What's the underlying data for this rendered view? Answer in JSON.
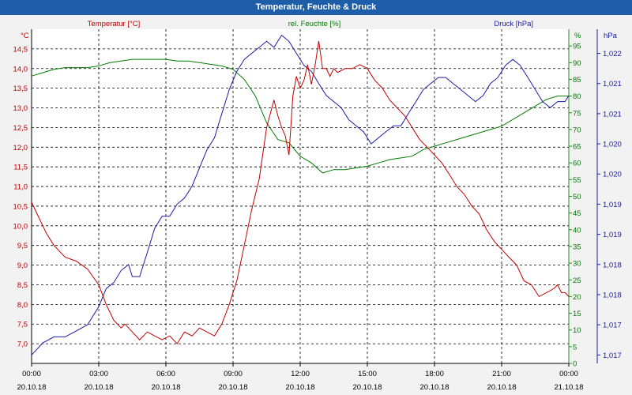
{
  "window_title": "Temperatur, Feuchte & Druck",
  "chart_data": {
    "type": "line",
    "title": "Temperatur, Feuchte & Druck",
    "x_tick_times": [
      "00:00",
      "03:00",
      "06:00",
      "09:00",
      "12:00",
      "15:00",
      "18:00",
      "21:00",
      "00:00"
    ],
    "x_tick_dates": [
      "20.10.18",
      "20.10.18",
      "20.10.18",
      "20.10.18",
      "20.10.18",
      "20.10.18",
      "20.10.18",
      "20.10.18",
      "21.10.18"
    ],
    "xlim_hours": [
      0,
      24
    ],
    "axes": {
      "temperature": {
        "label": "Temperatur [°C]",
        "unit": "°C",
        "color": "#c00000",
        "ylim": [
          6.5,
          15.0
        ],
        "ticks": [
          "14,5",
          "14,0",
          "13,5",
          "13,0",
          "12,5",
          "12,0",
          "11,5",
          "11,0",
          "10,5",
          "10,0",
          "9,5",
          "9,0",
          "8,5",
          "8,0",
          "7,5",
          "7,0"
        ],
        "tick_values": [
          14.5,
          14.0,
          13.5,
          13.0,
          12.5,
          12.0,
          11.5,
          11.0,
          10.5,
          10.0,
          9.5,
          9.0,
          8.5,
          8.0,
          7.5,
          7.0
        ]
      },
      "humidity": {
        "label": "rel. Feuchte [%]",
        "unit": "%",
        "color": "#007a00",
        "ylim": [
          0,
          100
        ],
        "ticks": [
          "95",
          "90",
          "85",
          "80",
          "75",
          "70",
          "65",
          "60",
          "55",
          "50",
          "45",
          "40",
          "35",
          "30",
          "25",
          "20",
          "15",
          "10",
          "5",
          "0"
        ],
        "tick_values": [
          95,
          90,
          85,
          80,
          75,
          70,
          65,
          60,
          55,
          50,
          45,
          40,
          35,
          30,
          25,
          20,
          15,
          10,
          5,
          0
        ]
      },
      "pressure": {
        "label": "Druck [hPa]",
        "unit": "hPa",
        "color": "#1a1aa8",
        "ylim": [
          1016.86,
          1022.4
        ],
        "ticks": [
          "1,022",
          "1,021",
          "1,021",
          "1,020",
          "1,020",
          "1,019",
          "1,019",
          "1,018",
          "1,018",
          "1,017",
          "1,017"
        ],
        "tick_values": [
          1022.0,
          1021.5,
          1021.0,
          1020.5,
          1020.0,
          1019.5,
          1019.0,
          1018.5,
          1018.0,
          1017.5,
          1017.0
        ]
      }
    },
    "series": [
      {
        "name": "Temperatur [°C]",
        "axis": "temperature",
        "color": "#c00000",
        "x": [
          0,
          0.33,
          0.67,
          1.0,
          1.5,
          2.0,
          2.5,
          3.0,
          3.33,
          3.67,
          4.0,
          4.17,
          4.5,
          4.83,
          5.17,
          5.5,
          5.83,
          6.17,
          6.5,
          6.83,
          7.17,
          7.5,
          7.83,
          8.17,
          8.5,
          8.83,
          9.17,
          9.5,
          9.83,
          10.17,
          10.5,
          10.83,
          11.0,
          11.17,
          11.33,
          11.5,
          11.67,
          11.83,
          12.0,
          12.17,
          12.33,
          12.5,
          12.67,
          12.83,
          13.0,
          13.17,
          13.33,
          13.5,
          13.67,
          14.0,
          14.33,
          14.67,
          15.0,
          15.33,
          15.67,
          16.0,
          16.33,
          16.67,
          17.0,
          17.33,
          17.67,
          18.0,
          18.33,
          18.67,
          19.0,
          19.33,
          19.67,
          20.0,
          20.33,
          20.67,
          21.0,
          21.33,
          21.67,
          22.0,
          22.33,
          22.67,
          23.0,
          23.33,
          23.5,
          23.67,
          23.83,
          24.0
        ],
        "values": [
          10.6,
          10.2,
          9.8,
          9.5,
          9.2,
          9.1,
          8.9,
          8.5,
          8.0,
          7.6,
          7.4,
          7.5,
          7.3,
          7.1,
          7.3,
          7.2,
          7.1,
          7.2,
          7.0,
          7.3,
          7.2,
          7.4,
          7.3,
          7.2,
          7.5,
          8.0,
          8.6,
          9.5,
          10.4,
          11.2,
          12.5,
          13.2,
          12.8,
          12.5,
          12.3,
          11.8,
          13.3,
          13.8,
          13.5,
          13.7,
          14.1,
          13.6,
          14.1,
          14.7,
          14.0,
          14.0,
          13.8,
          14.0,
          13.9,
          14.0,
          14.0,
          14.1,
          14.0,
          13.7,
          13.5,
          13.2,
          13.0,
          12.8,
          12.5,
          12.2,
          12.0,
          11.8,
          11.6,
          11.3,
          11.0,
          10.8,
          10.5,
          10.3,
          9.9,
          9.6,
          9.4,
          9.2,
          9.0,
          8.6,
          8.5,
          8.2,
          8.3,
          8.4,
          8.5,
          8.3,
          8.3,
          8.2
        ]
      },
      {
        "name": "rel. Feuchte [%]",
        "axis": "humidity",
        "color": "#007a00",
        "x": [
          0,
          0.5,
          1.0,
          1.5,
          2.0,
          2.5,
          3.0,
          3.5,
          4.0,
          4.5,
          5.0,
          5.5,
          6.0,
          6.5,
          7.0,
          7.5,
          8.0,
          8.5,
          9.0,
          9.5,
          10.0,
          10.5,
          11.0,
          11.5,
          12.0,
          12.5,
          13.0,
          13.5,
          14.0,
          14.5,
          15.0,
          15.5,
          16.0,
          16.5,
          17.0,
          17.5,
          18.0,
          18.5,
          19.0,
          19.5,
          20.0,
          20.5,
          21.0,
          21.5,
          22.0,
          22.5,
          23.0,
          23.5,
          24.0
        ],
        "values": [
          86,
          87,
          88,
          88.5,
          88.5,
          88.5,
          89,
          90,
          90.5,
          91,
          91,
          91,
          91,
          90.5,
          90.5,
          90,
          89.5,
          89,
          88,
          85,
          80,
          72,
          67,
          66,
          62,
          60,
          57,
          58,
          58,
          58.5,
          59,
          60,
          61,
          61.5,
          62,
          64,
          65,
          66,
          67,
          68,
          69,
          70,
          71,
          73,
          75,
          77,
          79,
          80,
          80
        ]
      },
      {
        "name": "Druck [hPa]",
        "axis": "pressure",
        "color": "#1a1aa8",
        "x": [
          0,
          0.5,
          1.0,
          1.5,
          2.0,
          2.5,
          3.0,
          3.33,
          3.67,
          4.0,
          4.33,
          4.5,
          4.83,
          5.17,
          5.5,
          5.83,
          6.17,
          6.5,
          6.83,
          7.17,
          7.5,
          7.83,
          8.17,
          8.5,
          8.83,
          9.17,
          9.5,
          9.83,
          10.17,
          10.5,
          10.83,
          11.17,
          11.5,
          11.83,
          12.17,
          12.5,
          12.83,
          13.17,
          13.5,
          13.83,
          14.17,
          14.5,
          14.83,
          15.17,
          15.5,
          15.83,
          16.17,
          16.5,
          16.83,
          17.17,
          17.5,
          17.83,
          18.17,
          18.5,
          18.83,
          19.17,
          19.5,
          19.83,
          20.17,
          20.5,
          20.83,
          21.17,
          21.5,
          21.83,
          22.17,
          22.5,
          22.83,
          23.17,
          23.5,
          23.83,
          24.0
        ],
        "values": [
          1017.0,
          1017.2,
          1017.3,
          1017.3,
          1017.4,
          1017.5,
          1017.8,
          1018.1,
          1018.2,
          1018.4,
          1018.5,
          1018.3,
          1018.3,
          1018.7,
          1019.1,
          1019.3,
          1019.3,
          1019.5,
          1019.6,
          1019.8,
          1020.1,
          1020.4,
          1020.6,
          1021.0,
          1021.4,
          1021.7,
          1021.9,
          1022.0,
          1022.1,
          1022.2,
          1022.1,
          1022.3,
          1022.2,
          1022.0,
          1021.8,
          1021.7,
          1021.5,
          1021.3,
          1021.2,
          1021.1,
          1020.9,
          1020.8,
          1020.7,
          1020.5,
          1020.6,
          1020.7,
          1020.8,
          1020.8,
          1021.0,
          1021.2,
          1021.4,
          1021.5,
          1021.6,
          1021.6,
          1021.5,
          1021.4,
          1021.3,
          1021.2,
          1021.3,
          1021.5,
          1021.6,
          1021.8,
          1021.9,
          1021.8,
          1021.6,
          1021.4,
          1021.2,
          1021.1,
          1021.2,
          1021.2,
          1021.3
        ]
      }
    ]
  }
}
